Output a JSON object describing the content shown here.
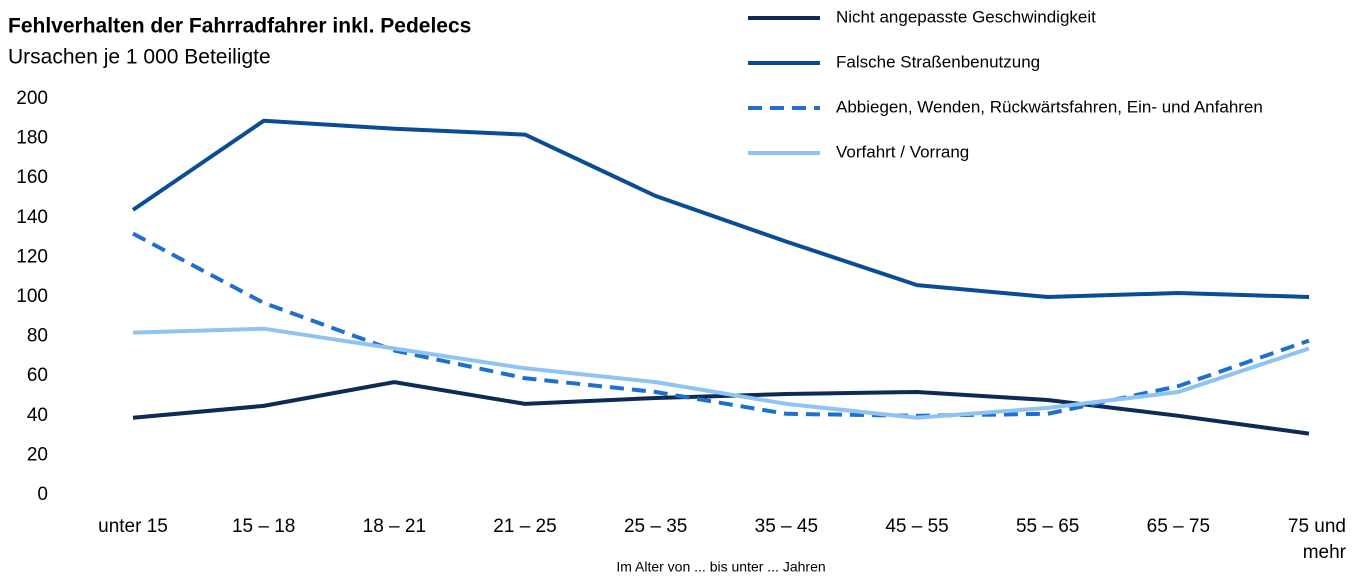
{
  "chart_data": {
    "type": "line",
    "title": "Fehlverhalten der Fahrradfahrer inkl. Pedelecs",
    "subtitle": "Ursachen je 1 000 Beteiligte",
    "x_label": "Im Alter von ... bis unter ... Jahren",
    "categories": [
      "unter 15",
      "15 – 18",
      "18 – 21",
      "21 – 25",
      "25 – 35",
      "35 – 45",
      "45 – 55",
      "55 – 65",
      "65 – 75",
      "75 und mehr"
    ],
    "series": [
      {
        "name": "Nicht angepasste Geschwindigkeit",
        "color": "#0d2b55",
        "dash": false,
        "values": [
          39,
          45,
          57,
          46,
          49,
          51,
          52,
          48,
          40,
          31
        ]
      },
      {
        "name": "Falsche Straßenbenutzung",
        "color": "#0a4d94",
        "dash": false,
        "values": [
          144,
          189,
          185,
          182,
          151,
          128,
          106,
          100,
          102,
          100
        ]
      },
      {
        "name": "Abbiegen, Wenden, Rückwärtsfahren, Ein- und Anfahren",
        "color": "#1f6fcf",
        "dash": true,
        "values": [
          132,
          97,
          73,
          59,
          52,
          41,
          40,
          41,
          55,
          78
        ]
      },
      {
        "name": "Vorfahrt / Vorrang",
        "color": "#8ec3f2",
        "dash": false,
        "values": [
          82,
          84,
          74,
          64,
          57,
          46,
          39,
          44,
          52,
          74
        ]
      }
    ],
    "ylim": [
      0,
      200
    ],
    "yticks": [
      0,
      20,
      40,
      60,
      80,
      100,
      120,
      140,
      160,
      180,
      200
    ],
    "grid": false
  }
}
